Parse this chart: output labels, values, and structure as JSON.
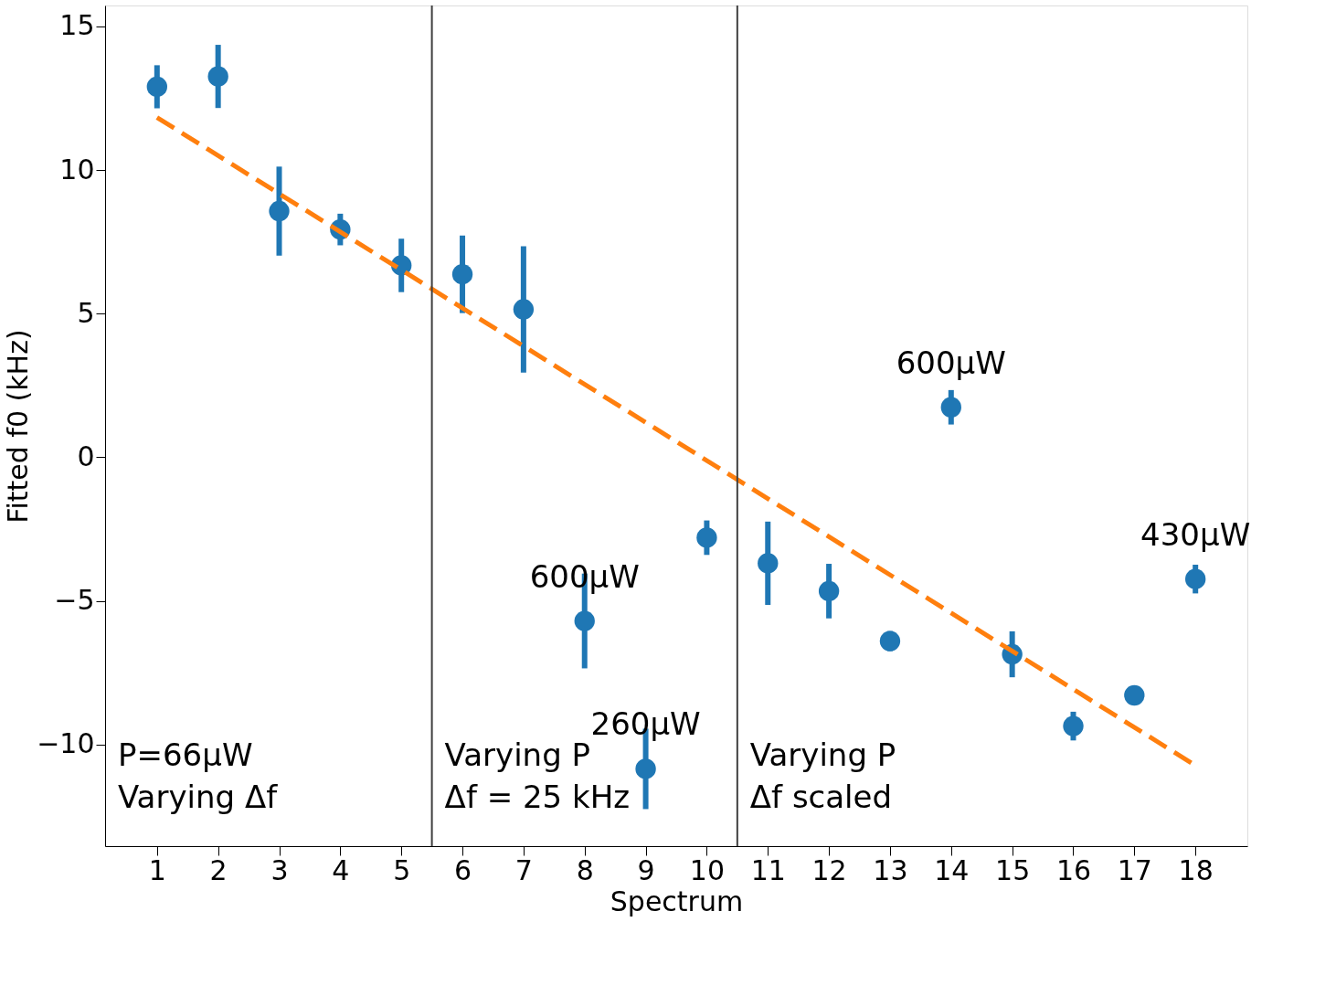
{
  "chart_data": {
    "type": "scatter",
    "xlabel": "Spectrum",
    "ylabel": "Fitted f0 (kHz)",
    "x": [
      1,
      2,
      3,
      4,
      5,
      6,
      7,
      8,
      9,
      10,
      11,
      12,
      13,
      14,
      15,
      16,
      17,
      18
    ],
    "series": [
      {
        "color": "#1f77b4",
        "marker": "circle",
        "values": [
          12.9,
          13.26,
          8.57,
          7.93,
          6.68,
          6.37,
          5.15,
          -5.7,
          -10.85,
          -2.8,
          -3.69,
          -4.66,
          -6.4,
          1.74,
          -6.86,
          -9.36,
          -8.29,
          -4.24
        ],
        "errors": [
          0.75,
          1.1,
          1.55,
          0.55,
          0.93,
          1.35,
          2.2,
          1.65,
          1.4,
          0.6,
          1.45,
          0.95,
          0.35,
          0.6,
          0.8,
          0.5,
          0.25,
          0.5
        ]
      },
      {
        "type": "line",
        "color": "#ff7f0e",
        "line_style": "dashed",
        "x": [
          1,
          18
        ],
        "values": [
          11.83,
          -10.73
        ]
      }
    ],
    "xlim": [
      0.15,
      18.85
    ],
    "ylim": [
      -13.54,
      15.73
    ],
    "xticks": [
      1,
      2,
      3,
      4,
      5,
      6,
      7,
      8,
      9,
      10,
      11,
      12,
      13,
      14,
      15,
      16,
      17,
      18
    ],
    "yticks": [
      -10,
      -5,
      0,
      5,
      10,
      15
    ],
    "ref_lines": [
      {
        "axis": "x",
        "value": 5.5,
        "color": "#404040"
      },
      {
        "axis": "x",
        "value": 10.5,
        "color": "#404040"
      }
    ],
    "annotations": [
      {
        "text": "600µW",
        "x": 8,
        "y": -5.7
      },
      {
        "text": "260µW",
        "x": 9,
        "y": -10.85
      },
      {
        "text": "600µW",
        "x": 14,
        "y": 1.74
      },
      {
        "text": "430µW",
        "x": 18,
        "y": -4.24
      },
      "P=66µW\nVarying Δf",
      "Varying P\nΔf = 25 kHz",
      "Varying P\nΔf scaled"
    ],
    "grid": false
  }
}
